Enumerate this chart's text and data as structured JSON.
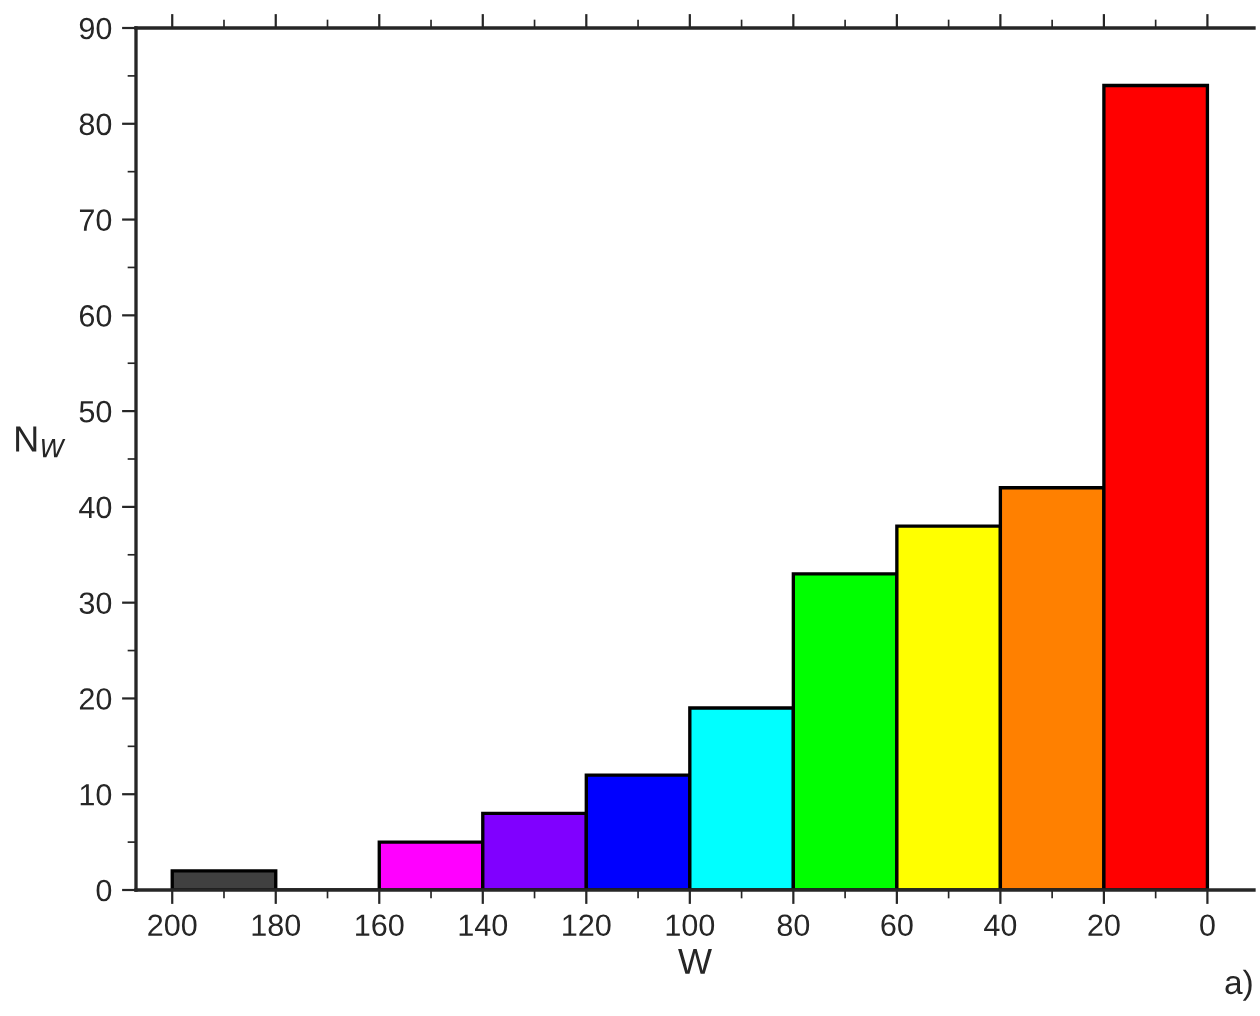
{
  "chart_data": {
    "type": "histogram",
    "xlabel": "W",
    "ylabel": "N$_{W}$",
    "bins": [
      200,
      180,
      160,
      140,
      120,
      100,
      80,
      60,
      40,
      20,
      0
    ],
    "values": [
      2,
      0,
      5,
      8,
      12,
      19,
      33,
      38,
      42,
      84
    ],
    "colors": [
      "#404040",
      "#000000",
      "#ff00ff",
      "#8000ff",
      "#0000ff",
      "#00ffff",
      "#00ff00",
      "#ffff00",
      "#ff8000",
      "#ff0000"
    ],
    "xlim": [
      207,
      -9
    ],
    "xticks": [
      200,
      180,
      160,
      140,
      120,
      100,
      80,
      60,
      40,
      20,
      0
    ],
    "ylim": [
      0,
      90
    ],
    "yticks": [
      0,
      10,
      20,
      30,
      40,
      50,
      60,
      70,
      80,
      90
    ],
    "grid": false,
    "legend": false,
    "annotations": [
      "a)"
    ]
  }
}
